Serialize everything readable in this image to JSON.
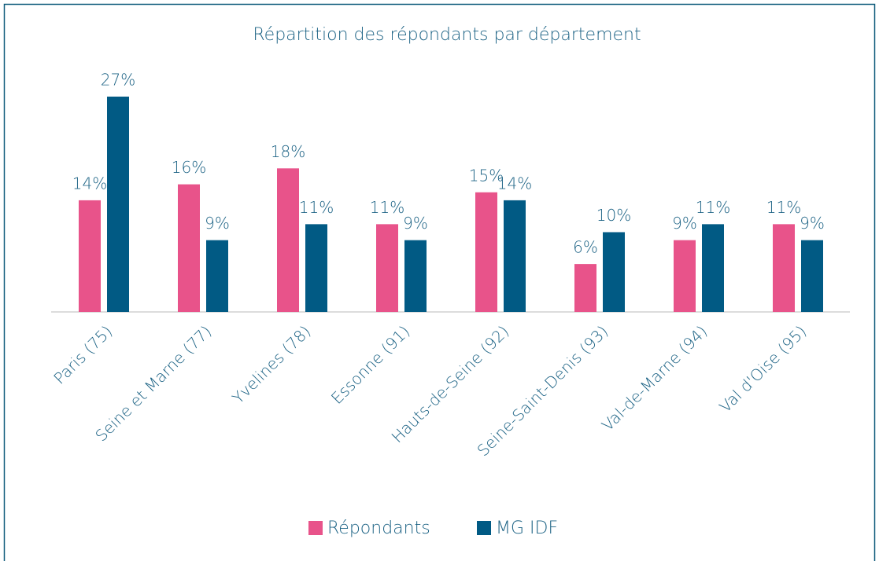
{
  "chart_data": {
    "type": "bar",
    "title": "Répartition des répondants par département",
    "categories": [
      "Paris (75)",
      "Seine et Marne (77)",
      "Yvelines (78)",
      "Essonne (91)",
      "Hauts-de-Seine (92)",
      "Seine-Saint-Denis (93)",
      "Val-de-Marne (94)",
      "Val d'Oise (95)"
    ],
    "series": [
      {
        "name": "Répondants",
        "color": "#e8538a",
        "values": [
          14,
          16,
          18,
          11,
          15,
          6,
          9,
          11
        ],
        "value_labels": [
          "14%",
          "16%",
          "18%",
          "11%",
          "15%",
          "6%",
          "9%",
          "11%"
        ]
      },
      {
        "name": "MG IDF",
        "color": "#015a84",
        "values": [
          27,
          9,
          11,
          9,
          14,
          10,
          11,
          9
        ],
        "value_labels": [
          "27%",
          "9%",
          "11%",
          "9%",
          "14%",
          "10%",
          "11%",
          "9%"
        ]
      }
    ],
    "legend": "bottom"
  }
}
